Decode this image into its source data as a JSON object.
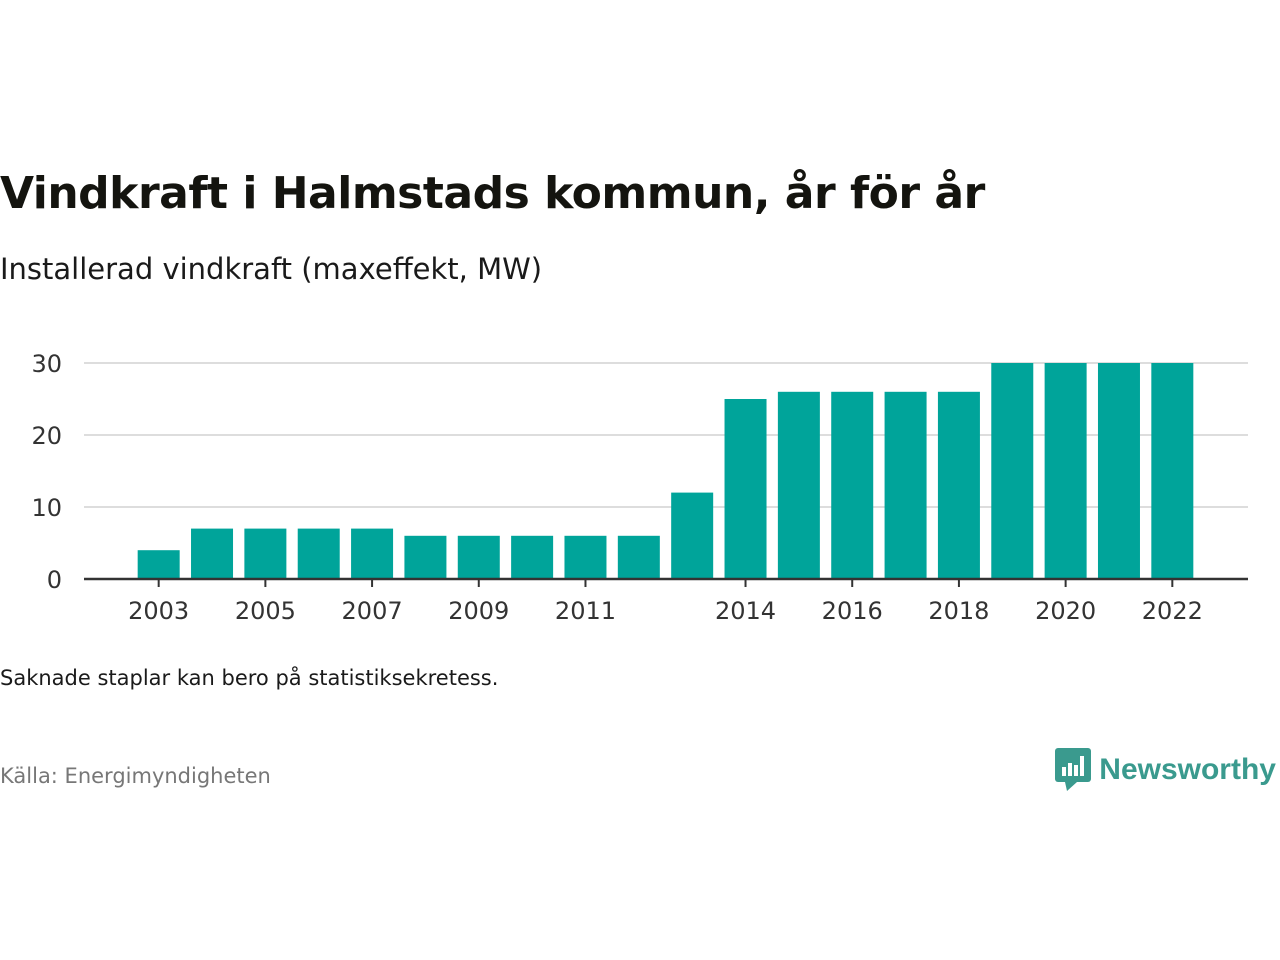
{
  "header": {
    "title": "Vindkraft i Halmstads kommun, år för år",
    "subtitle": "Installerad vindkraft (maxeffekt, MW)"
  },
  "footer": {
    "note": "Saknade staplar kan bero på statistiksekretess.",
    "source": "Källa: Energimyndigheten",
    "brand": "Newsworthy"
  },
  "colors": {
    "bar": "#00a49a",
    "grid": "#dddddd",
    "axis": "#333333",
    "brand": "#3a9a8e"
  },
  "chart_data": {
    "type": "bar",
    "categories": [
      "2003",
      "2004",
      "2005",
      "2006",
      "2007",
      "2008",
      "2009",
      "2010",
      "2011",
      "2012",
      "2013",
      "2014",
      "2015",
      "2016",
      "2017",
      "2018",
      "2019",
      "2020",
      "2021",
      "2022"
    ],
    "values": [
      4,
      7,
      7,
      7,
      7,
      6,
      6,
      6,
      6,
      6,
      12,
      25,
      26,
      26,
      26,
      26,
      30,
      30,
      30,
      30
    ],
    "x_tick_labels": [
      "2003",
      "2005",
      "2007",
      "2009",
      "2011",
      "2014",
      "2016",
      "2018",
      "2020",
      "2022"
    ],
    "y_ticks": [
      0,
      10,
      20,
      30
    ],
    "ylim": [
      0,
      30
    ],
    "grid": true,
    "xlabel": "",
    "ylabel": ""
  }
}
